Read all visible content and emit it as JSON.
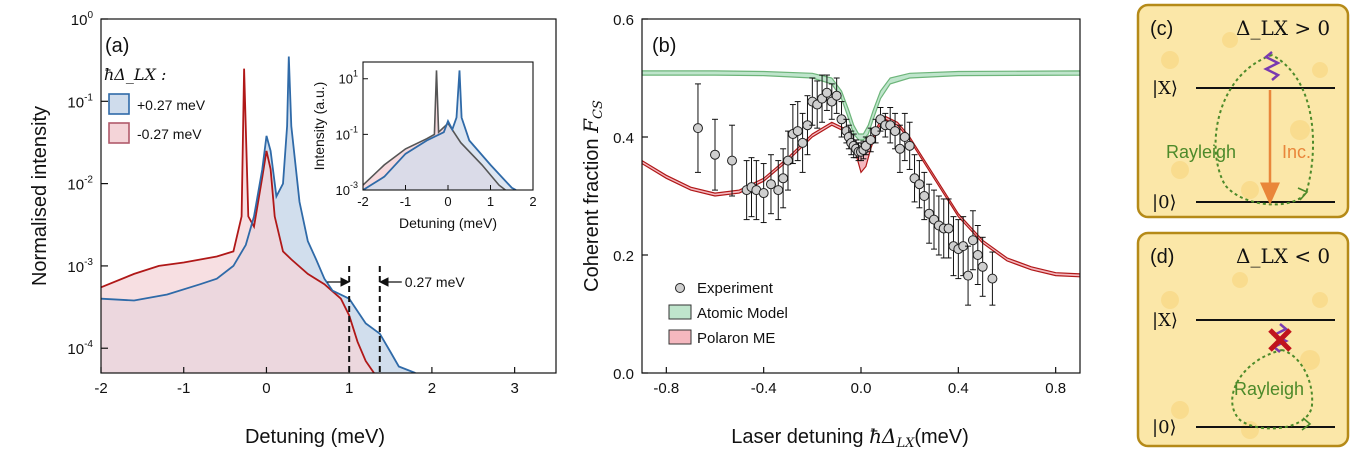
{
  "panel_a": {
    "tag": "(a)",
    "xlabel": "Detuning (meV)",
    "ylabel": "Normalised intensity",
    "legend_title": "ħΔ_LX :",
    "separation_label": "0.27 meV",
    "inset": {
      "xlabel": "Detuning (meV)",
      "ylabel": "Intensity (a.u.)"
    }
  },
  "panel_b": {
    "tag": "(b)",
    "xlabel_prefix": "Laser detuning ",
    "xlabel_symbol": "ħΔ",
    "xlabel_sub": "LX",
    "xlabel_suffix": "(meV)",
    "ylabel_prefix": "Coherent fraction ",
    "ylabel_symbol": "F",
    "ylabel_sub": "CS"
  },
  "panel_c": {
    "tag": "(c)",
    "condition": "Δ_LX > 0",
    "upper_level": "|X⟩",
    "lower_level": "|0⟩",
    "rayleigh_label": "Rayleigh",
    "incoherent_label": "Inc."
  },
  "panel_d": {
    "tag": "(d)",
    "condition": "Δ_LX < 0",
    "upper_level": "|X⟩",
    "lower_level": "|0⟩",
    "rayleigh_label": "Rayleigh"
  },
  "colors": {
    "blue": "#2f6aa8",
    "blue_fill": "#cfdcec",
    "red": "#b01818",
    "red_fill": "#f4d4d8",
    "overlap_fill": "#d8cfdc",
    "green": "#6db57a",
    "green_fill": "#bfe5cc",
    "pink_fill": "#f5b8bf",
    "orange": "#e9863a",
    "purple": "#7a3ab0",
    "rayleigh_green": "#4d8a2a",
    "panel_bg": "#fbe7a8",
    "panel_border": "#b58a18"
  },
  "chart_data": [
    {
      "type": "area",
      "panel": "a",
      "xlim": [
        -2,
        3.5
      ],
      "ylim": [
        5e-05,
        1
      ],
      "yscale": "log",
      "x_ticks": [
        "-2",
        "-1",
        "0",
        "1",
        "2",
        "3"
      ],
      "y_ticks": [
        "10^0",
        "10^-1",
        "10^-2",
        "10^-3",
        "10^-4"
      ],
      "series": [
        {
          "name": "+0.27 meV",
          "color": "blue",
          "points": [
            [
              -2.0,
              0.0004
            ],
            [
              -1.6,
              0.00038
            ],
            [
              -1.2,
              0.00045
            ],
            [
              -0.8,
              0.0006
            ],
            [
              -0.6,
              0.0007
            ],
            [
              -0.4,
              0.001
            ],
            [
              -0.25,
              0.0018
            ],
            [
              -0.15,
              0.004
            ],
            [
              -0.05,
              0.015
            ],
            [
              0.0,
              0.038
            ],
            [
              0.05,
              0.025
            ],
            [
              0.12,
              0.007
            ],
            [
              0.2,
              0.01
            ],
            [
              0.25,
              0.05
            ],
            [
              0.27,
              0.35
            ],
            [
              0.3,
              0.05
            ],
            [
              0.4,
              0.006
            ],
            [
              0.5,
              0.002
            ],
            [
              0.6,
              0.0012
            ],
            [
              0.7,
              0.0007
            ],
            [
              0.8,
              0.0005
            ],
            [
              1.0,
              0.0004
            ],
            [
              1.2,
              0.0002
            ],
            [
              1.37,
              0.00015
            ],
            [
              1.5,
              9e-05
            ],
            [
              1.6,
              6e-05
            ],
            [
              1.8,
              5e-05
            ]
          ]
        },
        {
          "name": "-0.27 meV",
          "color": "red",
          "points": [
            [
              -2.0,
              0.00055
            ],
            [
              -1.6,
              0.0008
            ],
            [
              -1.3,
              0.001
            ],
            [
              -1.0,
              0.0011
            ],
            [
              -0.6,
              0.0013
            ],
            [
              -0.4,
              0.0015
            ],
            [
              -0.3,
              0.004
            ],
            [
              -0.27,
              0.25
            ],
            [
              -0.22,
              0.004
            ],
            [
              -0.15,
              0.003
            ],
            [
              -0.05,
              0.012
            ],
            [
              0.0,
              0.025
            ],
            [
              0.05,
              0.015
            ],
            [
              0.1,
              0.004
            ],
            [
              0.2,
              0.0015
            ],
            [
              0.3,
              0.0012
            ],
            [
              0.5,
              0.0008
            ],
            [
              0.7,
              0.0006
            ],
            [
              0.9,
              0.0004
            ],
            [
              1.0,
              0.00025
            ],
            [
              1.1,
              0.00012
            ],
            [
              1.2,
              7e-05
            ],
            [
              1.3,
              5e-05
            ]
          ]
        }
      ],
      "annotations": [
        {
          "x": 1.0
        },
        {
          "x": 1.37
        }
      ]
    },
    {
      "type": "line",
      "panel": "a-inset",
      "xlim": [
        -2,
        2
      ],
      "ylim": [
        0.001,
        40
      ],
      "yscale": "log",
      "x_ticks": [
        "-2",
        "-1",
        "0",
        "1",
        "2"
      ],
      "y_ticks": [
        "10^1",
        "10^-1",
        "10^-3"
      ],
      "series": [
        {
          "color": "blue",
          "points": [
            [
              -2.0,
              0.001
            ],
            [
              -1.5,
              0.003
            ],
            [
              -1.0,
              0.02
            ],
            [
              -0.5,
              0.06
            ],
            [
              -0.1,
              0.12
            ],
            [
              0.0,
              0.3
            ],
            [
              0.1,
              0.15
            ],
            [
              0.2,
              0.4
            ],
            [
              0.27,
              20
            ],
            [
              0.32,
              0.4
            ],
            [
              0.5,
              0.06
            ],
            [
              1.0,
              0.008
            ],
            [
              1.5,
              0.0012
            ],
            [
              1.6,
              0.001
            ]
          ]
        },
        {
          "color": "red",
          "points": [
            [
              -2.0,
              0.0015
            ],
            [
              -1.5,
              0.008
            ],
            [
              -1.0,
              0.03
            ],
            [
              -0.5,
              0.07
            ],
            [
              -0.32,
              0.1
            ],
            [
              -0.27,
              20
            ],
            [
              -0.22,
              0.12
            ],
            [
              0.0,
              0.25
            ],
            [
              0.3,
              0.05
            ],
            [
              0.8,
              0.008
            ],
            [
              1.2,
              0.0015
            ],
            [
              1.35,
              0.001
            ]
          ]
        }
      ]
    },
    {
      "type": "scatter",
      "panel": "b",
      "xlim": [
        -0.9,
        0.9
      ],
      "ylim": [
        0,
        0.6
      ],
      "x_ticks": [
        "-0.8",
        "-0.4",
        "0.0",
        "0.4",
        "0.8"
      ],
      "y_ticks": [
        "0.0",
        "0.2",
        "0.4",
        "0.6"
      ],
      "legend": [
        "Experiment",
        "Atomic Model",
        "Polaron ME"
      ],
      "experiment": [
        [
          -0.67,
          0.415,
          0.075
        ],
        [
          -0.6,
          0.37,
          0.06
        ],
        [
          -0.53,
          0.36,
          0.06
        ],
        [
          -0.47,
          0.31,
          0.05
        ],
        [
          -0.45,
          0.315,
          0.05
        ],
        [
          -0.43,
          0.31,
          0.05
        ],
        [
          -0.4,
          0.305,
          0.05
        ],
        [
          -0.37,
          0.32,
          0.05
        ],
        [
          -0.34,
          0.31,
          0.05
        ],
        [
          -0.32,
          0.33,
          0.05
        ],
        [
          -0.3,
          0.36,
          0.05
        ],
        [
          -0.28,
          0.405,
          0.05
        ],
        [
          -0.26,
          0.41,
          0.05
        ],
        [
          -0.24,
          0.39,
          0.05
        ],
        [
          -0.22,
          0.42,
          0.05
        ],
        [
          -0.2,
          0.46,
          0.04
        ],
        [
          -0.18,
          0.455,
          0.04
        ],
        [
          -0.16,
          0.465,
          0.04
        ],
        [
          -0.14,
          0.475,
          0.03
        ],
        [
          -0.12,
          0.46,
          0.03
        ],
        [
          -0.1,
          0.47,
          0.03
        ],
        [
          -0.08,
          0.43,
          0.03
        ],
        [
          -0.06,
          0.41,
          0.02
        ],
        [
          -0.05,
          0.4,
          0.02
        ],
        [
          -0.04,
          0.39,
          0.02
        ],
        [
          -0.03,
          0.385,
          0.02
        ],
        [
          -0.02,
          0.38,
          0.015
        ],
        [
          -0.01,
          0.375,
          0.015
        ],
        [
          0.0,
          0.375,
          0.015
        ],
        [
          0.01,
          0.378,
          0.015
        ],
        [
          0.02,
          0.385,
          0.015
        ],
        [
          0.04,
          0.395,
          0.02
        ],
        [
          0.06,
          0.41,
          0.02
        ],
        [
          0.08,
          0.43,
          0.02
        ],
        [
          0.1,
          0.42,
          0.02
        ],
        [
          0.12,
          0.42,
          0.03
        ],
        [
          0.14,
          0.41,
          0.03
        ],
        [
          0.16,
          0.38,
          0.04
        ],
        [
          0.18,
          0.4,
          0.04
        ],
        [
          0.2,
          0.385,
          0.04
        ],
        [
          0.22,
          0.33,
          0.04
        ],
        [
          0.24,
          0.32,
          0.04
        ],
        [
          0.26,
          0.3,
          0.04
        ],
        [
          0.28,
          0.27,
          0.05
        ],
        [
          0.3,
          0.26,
          0.05
        ],
        [
          0.32,
          0.25,
          0.05
        ],
        [
          0.34,
          0.245,
          0.05
        ],
        [
          0.36,
          0.245,
          0.05
        ],
        [
          0.38,
          0.215,
          0.05
        ],
        [
          0.4,
          0.21,
          0.05
        ],
        [
          0.42,
          0.215,
          0.05
        ],
        [
          0.44,
          0.165,
          0.05
        ],
        [
          0.46,
          0.225,
          0.05
        ],
        [
          0.48,
          0.2,
          0.05
        ],
        [
          0.5,
          0.18,
          0.05
        ],
        [
          0.54,
          0.16,
          0.045
        ]
      ],
      "atomic_model_band": [
        [
          -0.9,
          0.505,
          0.512
        ],
        [
          -0.6,
          0.505,
          0.512
        ],
        [
          -0.4,
          0.504,
          0.511
        ],
        [
          -0.2,
          0.5,
          0.508
        ],
        [
          -0.12,
          0.49,
          0.5
        ],
        [
          -0.08,
          0.465,
          0.478
        ],
        [
          -0.05,
          0.43,
          0.445
        ],
        [
          -0.03,
          0.405,
          0.42
        ],
        [
          -0.01,
          0.395,
          0.405
        ],
        [
          0.0,
          0.395,
          0.405
        ],
        [
          0.01,
          0.395,
          0.405
        ],
        [
          0.03,
          0.405,
          0.42
        ],
        [
          0.05,
          0.43,
          0.445
        ],
        [
          0.08,
          0.465,
          0.478
        ],
        [
          0.12,
          0.49,
          0.5
        ],
        [
          0.2,
          0.5,
          0.508
        ],
        [
          0.4,
          0.504,
          0.511
        ],
        [
          0.9,
          0.505,
          0.512
        ]
      ],
      "polaron_band": [
        [
          -0.9,
          0.355,
          0.36
        ],
        [
          -0.8,
          0.33,
          0.335
        ],
        [
          -0.7,
          0.31,
          0.315
        ],
        [
          -0.6,
          0.3,
          0.305
        ],
        [
          -0.5,
          0.305,
          0.31
        ],
        [
          -0.4,
          0.325,
          0.33
        ],
        [
          -0.3,
          0.36,
          0.365
        ],
        [
          -0.2,
          0.4,
          0.405
        ],
        [
          -0.12,
          0.42,
          0.425
        ],
        [
          -0.07,
          0.41,
          0.415
        ],
        [
          -0.04,
          0.39,
          0.395
        ],
        [
          -0.02,
          0.37,
          0.385
        ],
        [
          0.0,
          0.34,
          0.38
        ],
        [
          0.02,
          0.35,
          0.385
        ],
        [
          0.04,
          0.38,
          0.39
        ],
        [
          0.07,
          0.415,
          0.42
        ],
        [
          0.1,
          0.43,
          0.435
        ],
        [
          0.15,
          0.42,
          0.425
        ],
        [
          0.2,
          0.395,
          0.4
        ],
        [
          0.3,
          0.33,
          0.335
        ],
        [
          0.4,
          0.265,
          0.27
        ],
        [
          0.5,
          0.22,
          0.225
        ],
        [
          0.6,
          0.19,
          0.195
        ],
        [
          0.7,
          0.175,
          0.18
        ],
        [
          0.8,
          0.165,
          0.17
        ],
        [
          0.9,
          0.163,
          0.168
        ]
      ]
    }
  ]
}
